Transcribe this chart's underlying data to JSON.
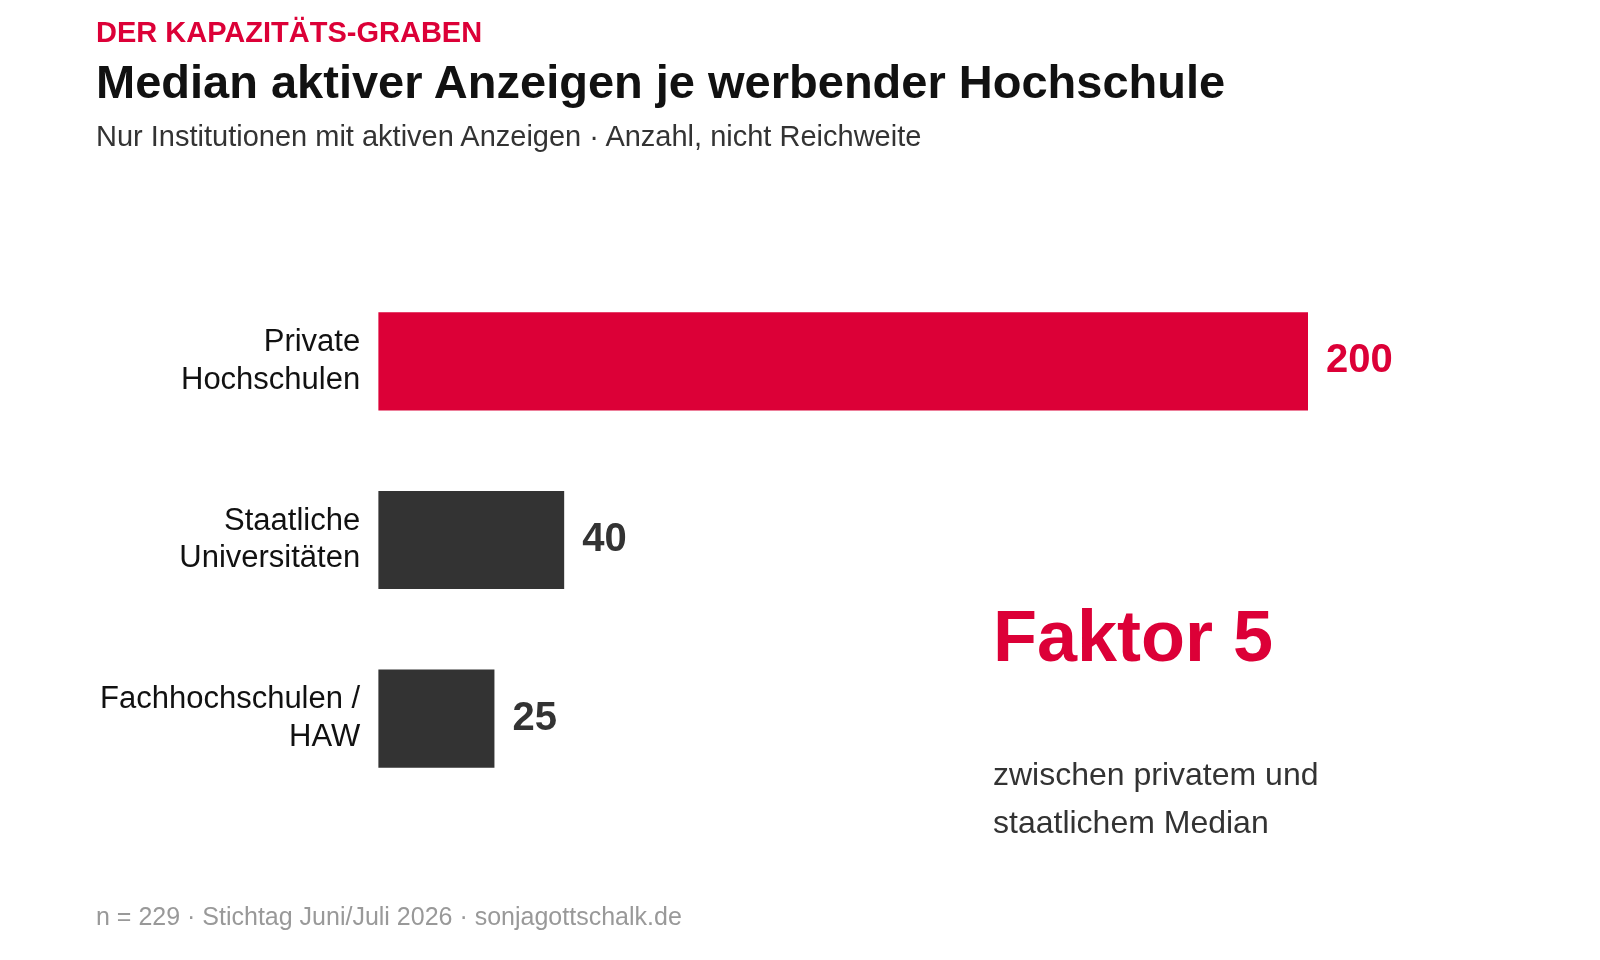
{
  "chart_data": {
    "type": "bar",
    "orientation": "horizontal",
    "title": "Median aktiver Anzeigen je werbender Hochschule",
    "subtitle": "Nur Institutionen mit aktiven Anzeigen · Anzahl, nicht Reichweite",
    "categories": [
      "Private Hochschulen",
      "Staatliche Universitäten",
      "Fachhochschulen / HAW"
    ],
    "values": [
      200,
      40,
      25
    ],
    "colors": [
      "#dc0037",
      "#333333",
      "#333333"
    ],
    "data_labels": true,
    "annotations": [
      "DER KAPAZITÄTS-GRABEN",
      "Faktor 5",
      "zwischen privatem und staatlichem Median",
      "n = 229 · Stichtag Juni/Juli 2026 · sonjagottschalk.de"
    ]
  }
}
